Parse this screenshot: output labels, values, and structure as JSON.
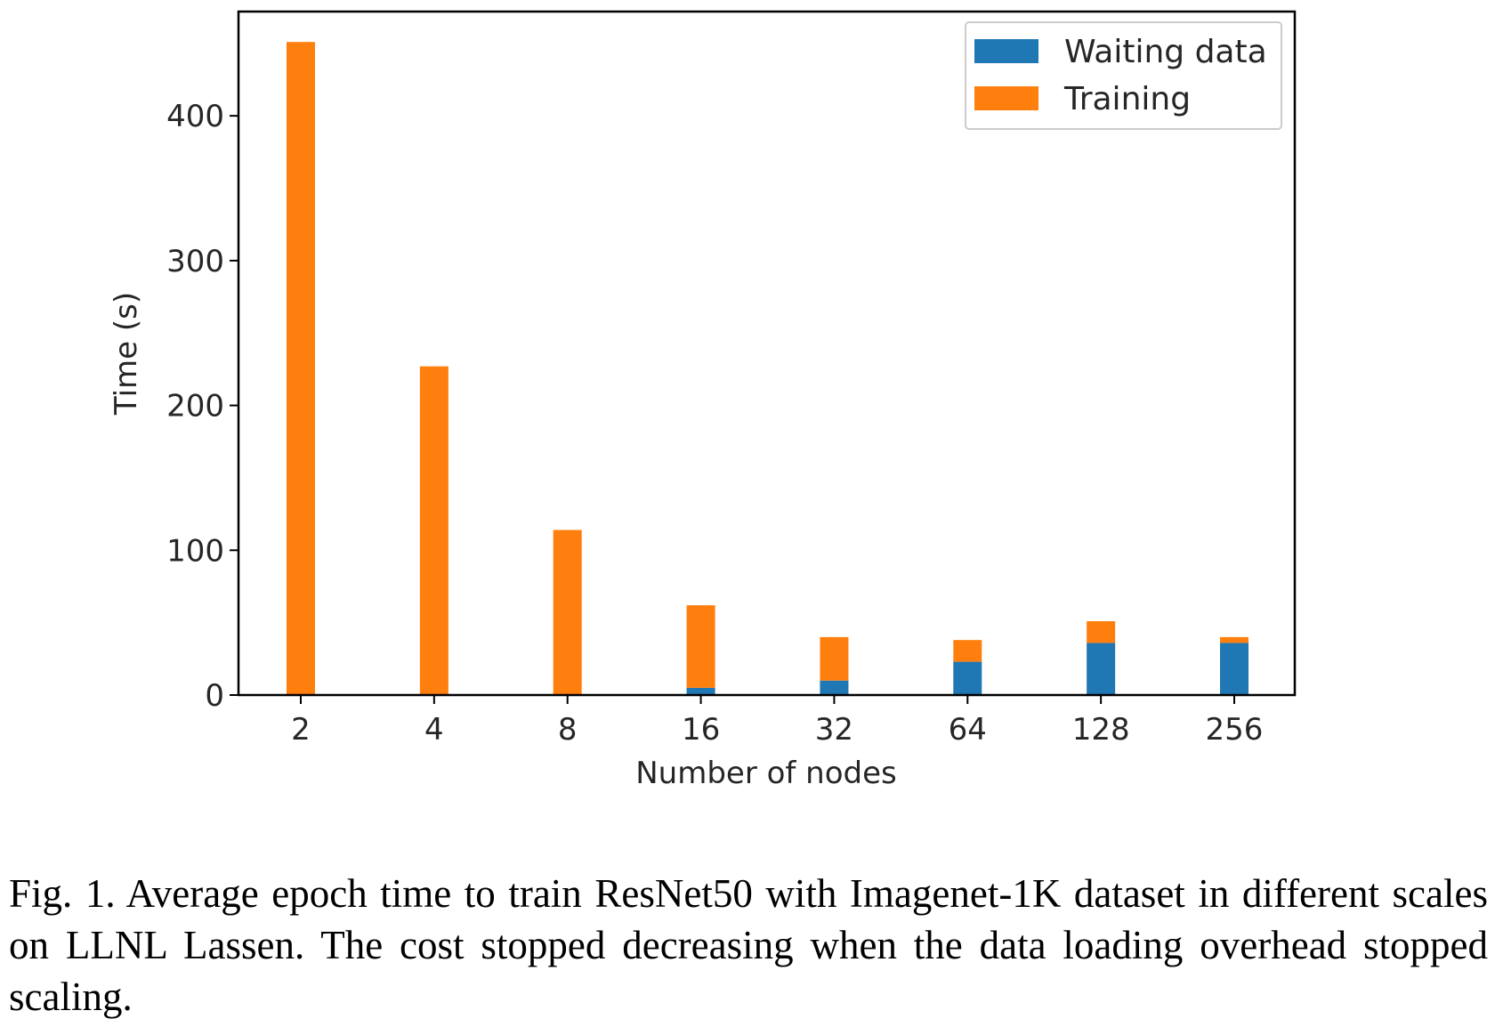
{
  "chart_data": {
    "type": "bar",
    "stacked": true,
    "categories": [
      "2",
      "4",
      "8",
      "16",
      "32",
      "64",
      "128",
      "256"
    ],
    "series": [
      {
        "name": "Waiting data",
        "color": "#1f77b4",
        "values": [
          0,
          0,
          0,
          5,
          10,
          23,
          36,
          36
        ]
      },
      {
        "name": "Training",
        "color": "#ff7f0e",
        "values": [
          451,
          227,
          114,
          57,
          30,
          15,
          15,
          4
        ]
      }
    ],
    "xlabel": "Number of nodes",
    "ylabel": "Time (s)",
    "ylim": [
      0,
      472
    ],
    "yticks": [
      0,
      100,
      200,
      300,
      400
    ],
    "legend": "top-right",
    "grid": false
  },
  "caption": "Fig. 1.  Average epoch time to train ResNet50 with Imagenet-1K dataset in different scales on LLNL Lassen. The cost stopped decreasing when the data loading overhead stopped scaling."
}
